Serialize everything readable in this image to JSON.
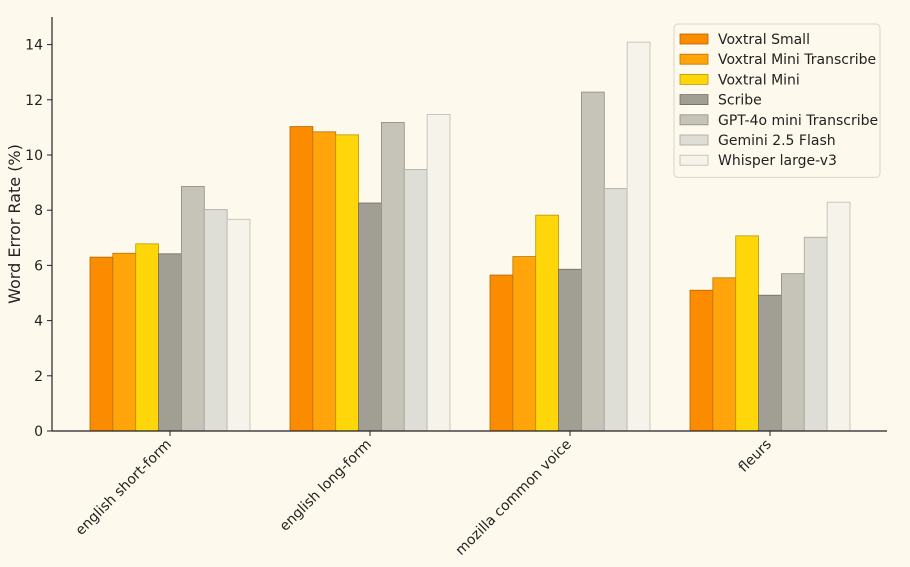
{
  "chart_data": {
    "type": "bar",
    "title": "",
    "xlabel": "",
    "ylabel": "Word Error Rate (%)",
    "ylim": [
      0,
      15
    ],
    "yticks": [
      0,
      2,
      4,
      6,
      8,
      10,
      12,
      14
    ],
    "grid": false,
    "legend_position": "top-right",
    "categories": [
      "english short-form",
      "english long-form",
      "mozilla common voice",
      "fleurs"
    ],
    "series": [
      {
        "name": "Voxtral Small",
        "color": "#fb8c00",
        "edge": "#b56200",
        "values": [
          6.3,
          11.03,
          5.65,
          5.1
        ]
      },
      {
        "name": "Voxtral Mini Transcribe",
        "color": "#ffa40a",
        "edge": "#b87400",
        "values": [
          6.44,
          10.84,
          6.32,
          5.55
        ]
      },
      {
        "name": "Voxtral Mini",
        "color": "#ffd60a",
        "edge": "#b89800",
        "values": [
          6.78,
          10.73,
          7.82,
          7.07
        ]
      },
      {
        "name": "Scribe",
        "color": "#a19e94",
        "edge": "#6e6b63",
        "values": [
          6.42,
          8.26,
          5.86,
          4.92
        ]
      },
      {
        "name": "GPT-4o mini Transcribe",
        "color": "#c6c3b8",
        "edge": "#8f8c82",
        "values": [
          8.86,
          11.18,
          12.28,
          5.7
        ]
      },
      {
        "name": "Gemini 2.5 Flash",
        "color": "#dfded6",
        "edge": "#a6a59d",
        "values": [
          8.02,
          9.47,
          8.78,
          7.02
        ]
      },
      {
        "name": "Whisper large-v3",
        "color": "#f5f3ea",
        "edge": "#bdbbb2",
        "values": [
          7.67,
          11.47,
          14.09,
          8.29
        ]
      }
    ]
  }
}
